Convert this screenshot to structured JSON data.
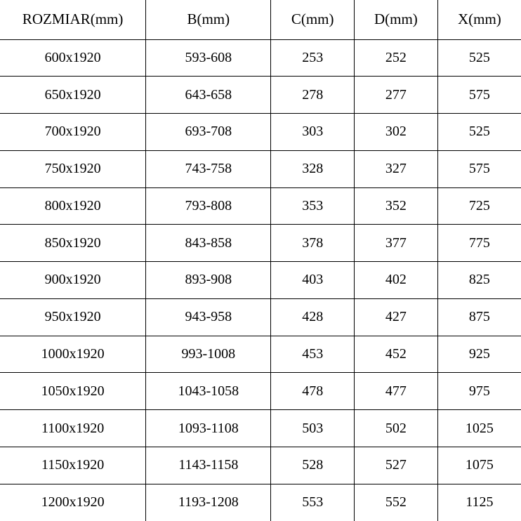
{
  "table": {
    "type": "table",
    "background_color": "#ffffff",
    "text_color": "#000000",
    "border_color": "#000000",
    "font_family": "SimSun, serif",
    "header_fontsize": 21,
    "cell_fontsize": 20,
    "column_widths_pct": [
      28,
      24,
      16,
      16,
      16
    ],
    "columns": [
      "ROZMIAR(mm)",
      "B(mm)",
      "C(mm)",
      "D(mm)",
      "X(mm)"
    ],
    "rows": [
      [
        "600x1920",
        "593-608",
        "253",
        "252",
        "525"
      ],
      [
        "650x1920",
        "643-658",
        "278",
        "277",
        "575"
      ],
      [
        "700x1920",
        "693-708",
        "303",
        "302",
        "525"
      ],
      [
        "750x1920",
        "743-758",
        "328",
        "327",
        "575"
      ],
      [
        "800x1920",
        "793-808",
        "353",
        "352",
        "725"
      ],
      [
        "850x1920",
        "843-858",
        "378",
        "377",
        "775"
      ],
      [
        "900x1920",
        "893-908",
        "403",
        "402",
        "825"
      ],
      [
        "950x1920",
        "943-958",
        "428",
        "427",
        "875"
      ],
      [
        "1000x1920",
        "993-1008",
        "453",
        "452",
        "925"
      ],
      [
        "1050x1920",
        "1043-1058",
        "478",
        "477",
        "975"
      ],
      [
        "1100x1920",
        "1093-1108",
        "503",
        "502",
        "1025"
      ],
      [
        "1150x1920",
        "1143-1158",
        "528",
        "527",
        "1075"
      ],
      [
        "1200x1920",
        "1193-1208",
        "553",
        "552",
        "1125"
      ]
    ]
  }
}
